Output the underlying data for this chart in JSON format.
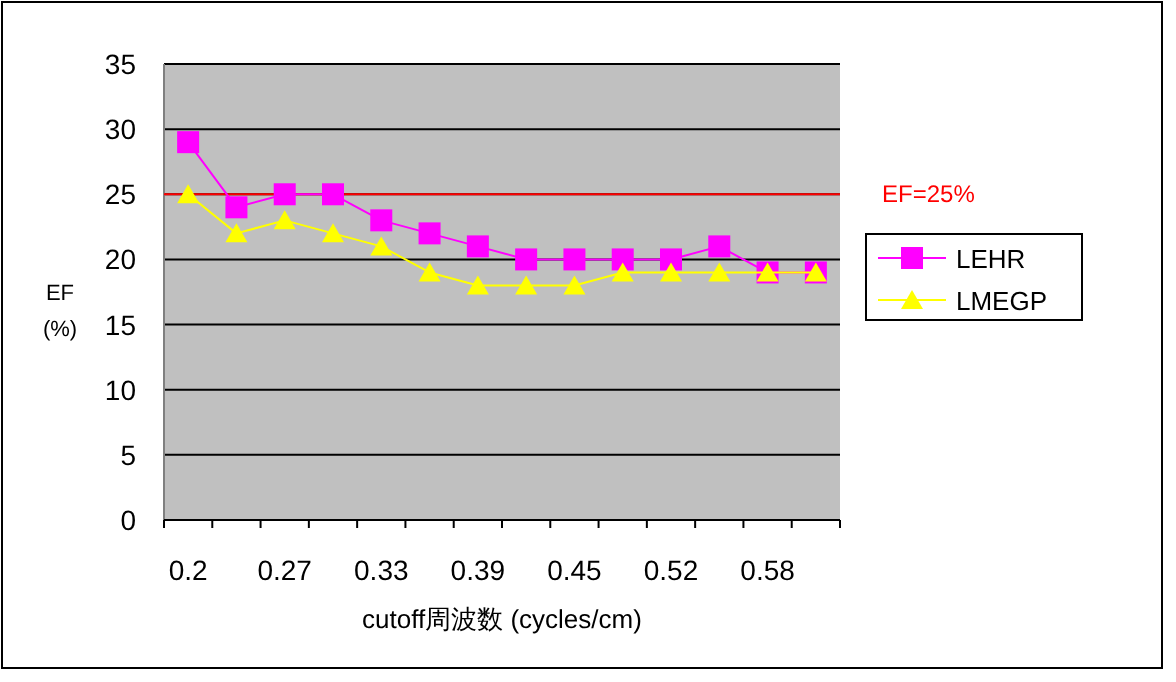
{
  "chart_data": {
    "type": "line",
    "xlabel": "cutoff周波数 (cycles/cm)",
    "ylabel": "EF (%)",
    "categories": [
      "0.2",
      null,
      "0.27",
      null,
      "0.33",
      null,
      "0.39",
      null,
      "0.45",
      null,
      "0.52",
      null,
      "0.58",
      null
    ],
    "series": [
      {
        "name": "LEHR",
        "color": "#ff00ff",
        "marker": "square",
        "values": [
          29,
          24,
          25,
          25,
          23,
          22,
          21,
          20,
          20,
          20,
          20,
          21,
          19,
          19
        ]
      },
      {
        "name": "LMEGP",
        "color": "#ffff00",
        "marker": "triangle",
        "values": [
          25,
          22,
          23,
          22,
          21,
          19,
          18,
          18,
          18,
          19,
          19,
          19,
          19,
          19
        ]
      }
    ],
    "ylim": [
      0,
      35
    ],
    "yticks": [
      0,
      5,
      10,
      15,
      20,
      25,
      30,
      35
    ],
    "grid": "y",
    "legend": "right",
    "ref_lines": [
      {
        "axis": "y",
        "value": 25,
        "label": "EF=25%",
        "color": "#ff0000"
      }
    ]
  }
}
